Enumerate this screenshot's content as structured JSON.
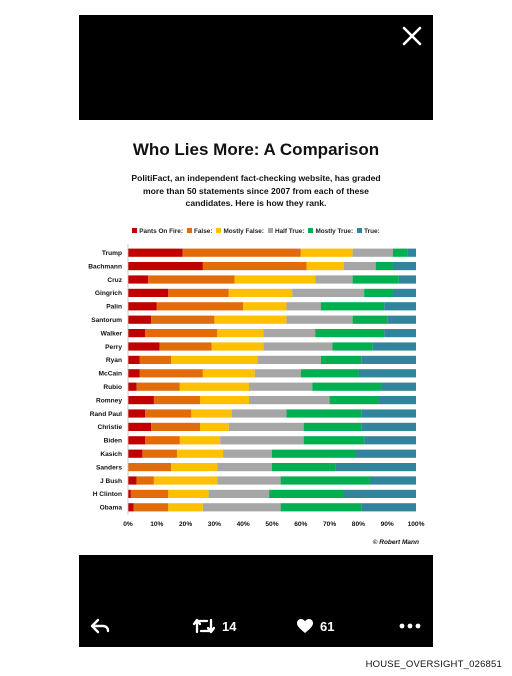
{
  "viewer": {
    "close_icon": "close-icon",
    "retweet_icon": "retweet-icon",
    "retweet_count": "14",
    "like_icon": "heart-icon",
    "like_count": "61",
    "reply_icon": "reply-icon",
    "more_icon": "more-dots-icon"
  },
  "image": {
    "title": "Who Lies More: A Comparison",
    "subtitle_lines": [
      "PolitiFact,  an independent fact-checking website, has graded",
      "more than 50 statements since 2007 from each of these",
      "candidates. Here is how they rank."
    ],
    "credit": "© Robert Mann"
  },
  "chart_data": {
    "type": "bar",
    "orientation": "horizontal-stacked-100",
    "categories": [
      "Trump",
      "Bachmann",
      "Cruz",
      "Gingrich",
      "Palin",
      "Santorum",
      "Walker",
      "Perry",
      "Ryan",
      "McCain",
      "Rubio",
      "Romney",
      "Rand Paul",
      "Christie",
      "Biden",
      "Kasich",
      "Sanders",
      "J Bush",
      "H Clinton",
      "Obama"
    ],
    "series": [
      {
        "name": "Pants On Fire:",
        "color": "#c00000",
        "values": [
          19,
          26,
          7,
          14,
          10,
          8,
          6,
          11,
          4,
          4,
          3,
          9,
          6,
          8,
          6,
          5,
          0,
          3,
          1,
          2
        ]
      },
      {
        "name": "False:",
        "color": "#e36c0a",
        "values": [
          41,
          36,
          30,
          21,
          30,
          22,
          25,
          18,
          11,
          22,
          15,
          16,
          16,
          17,
          12,
          12,
          15,
          6,
          13,
          12
        ]
      },
      {
        "name": "Mostly False:",
        "color": "#ffc000",
        "values": [
          18,
          13,
          28,
          22,
          15,
          25,
          16,
          18,
          30,
          18,
          24,
          17,
          14,
          10,
          14,
          16,
          16,
          22,
          14,
          12
        ]
      },
      {
        "name": "Half True:",
        "color": "#a6a6a6",
        "values": [
          14,
          11,
          13,
          25,
          12,
          23,
          18,
          24,
          22,
          16,
          22,
          28,
          19,
          26,
          29,
          17,
          19,
          22,
          21,
          27
        ]
      },
      {
        "name": "Mostly True:",
        "color": "#00b050",
        "values": [
          5,
          6,
          16,
          10,
          22,
          12,
          24,
          14,
          14,
          20,
          24,
          17,
          26,
          20,
          21,
          29,
          22,
          31,
          26,
          28
        ]
      },
      {
        "name": "True:",
        "color": "#31849b",
        "values": [
          3,
          8,
          6,
          8,
          11,
          10,
          11,
          15,
          19,
          20,
          12,
          13,
          19,
          19,
          18,
          21,
          28,
          16,
          25,
          19
        ]
      }
    ],
    "x_ticks": [
      "0%",
      "10%",
      "20%",
      "30%",
      "40%",
      "50%",
      "60%",
      "70%",
      "80%",
      "90%",
      "100%"
    ],
    "xlim": [
      0,
      100
    ],
    "grid": false,
    "legend_position": "top"
  },
  "page": {
    "footer_id": "HOUSE_OVERSIGHT_026851"
  }
}
